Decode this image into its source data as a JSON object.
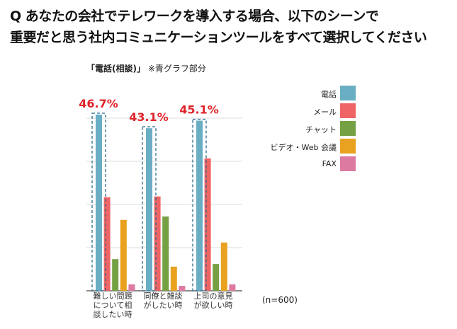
{
  "question": {
    "prefix": "Q",
    "line1": "あなたの会社でテレワークを導入する場合、以下のシーンで",
    "line2": "重要だと思う社内コミュニケーションツールをすべて選択してください"
  },
  "subtitle": {
    "bold": "「電話(相談)」",
    "note": "※青グラフ部分"
  },
  "sample": "(n=600)",
  "chart_data": {
    "type": "bar",
    "categories": [
      "難しい問題について相談したい時",
      "同僚と雑談がしたい時",
      "上司の意見が欲しい時"
    ],
    "series": [
      {
        "name": "電話",
        "color": "#6aaec3",
        "values": [
          46.7,
          43.1,
          45.1
        ]
      },
      {
        "name": "メール",
        "color": "#ef6464",
        "values": [
          24.8,
          25.0,
          35.1
        ]
      },
      {
        "name": "チャット",
        "color": "#75a043",
        "values": [
          8.4,
          19.7,
          7.1
        ]
      },
      {
        "name": "ビデオ・Web 会議",
        "color": "#e9a220",
        "values": [
          18.8,
          6.4,
          12.8
        ]
      },
      {
        "name": "FAX",
        "color": "#dc7aa2",
        "values": [
          1.7,
          1.3,
          1.7
        ]
      }
    ],
    "annotations": [
      "46.7%",
      "43.1%",
      "45.1%"
    ],
    "ylim": [
      0,
      50
    ],
    "grid": true,
    "legend": "right"
  }
}
